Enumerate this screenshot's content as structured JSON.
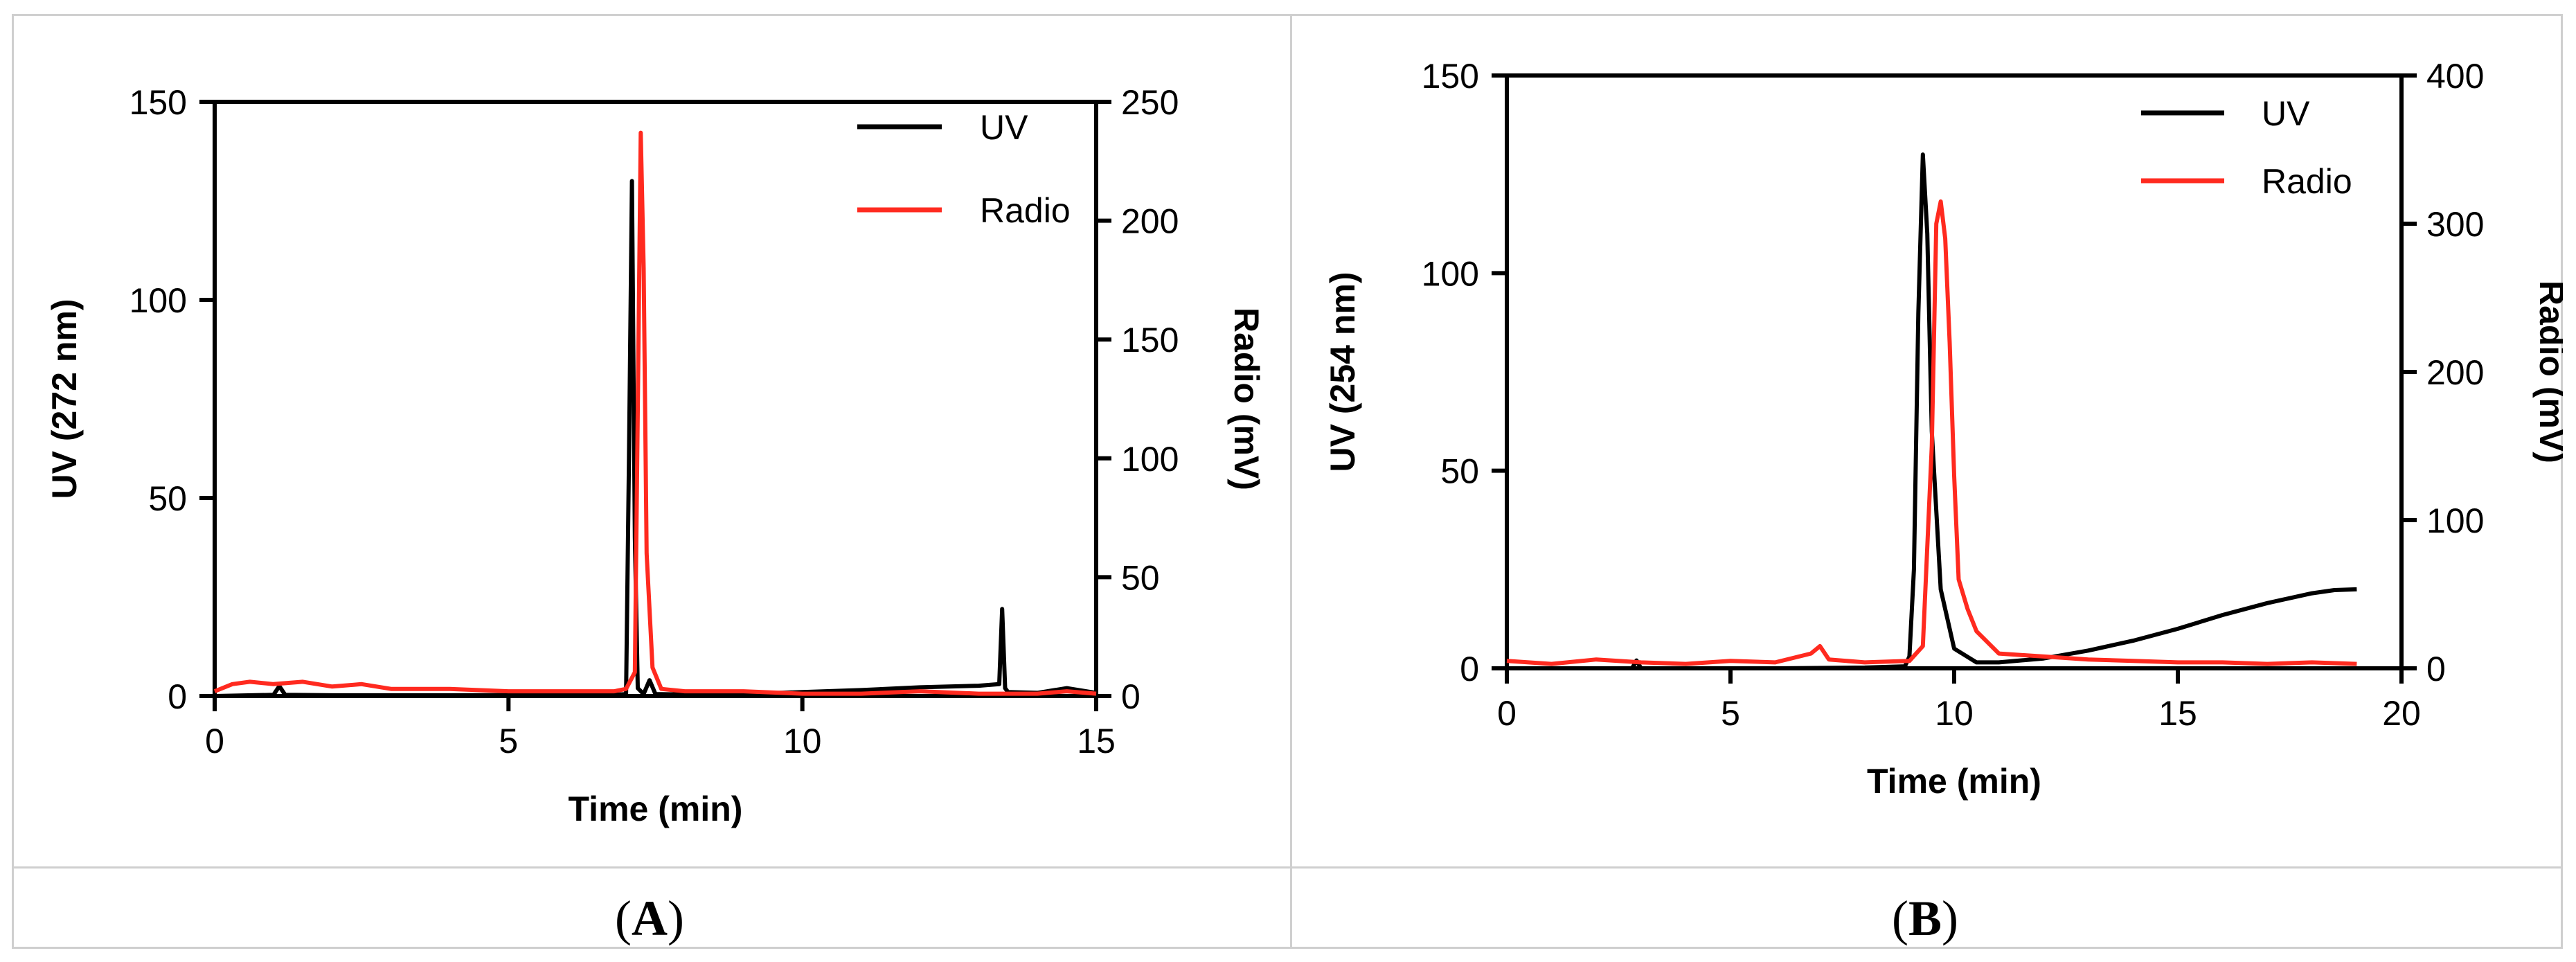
{
  "panels": [
    {
      "caption_open": "(",
      "caption_letter": "A",
      "caption_close": ")"
    },
    {
      "caption_open": "(",
      "caption_letter": "B",
      "caption_close": ")"
    }
  ],
  "chart_data": [
    {
      "type": "line",
      "xlabel": "Time (min)",
      "ylabel_left": "UV (272 nm)",
      "ylabel_right": "Radio (mV)",
      "xlim": [
        0,
        15
      ],
      "ylim_left": [
        0,
        150
      ],
      "ylim_right": [
        0,
        250
      ],
      "xticks": [
        0,
        5,
        10,
        15
      ],
      "yticks_left": [
        0,
        50,
        100,
        150
      ],
      "yticks_right": [
        0,
        50,
        100,
        150,
        200,
        250
      ],
      "grid": false,
      "legend_position": "top-right",
      "series": [
        {
          "name": "UV",
          "axis": "left",
          "color": "#000000",
          "x": [
            0,
            1.0,
            1.1,
            1.2,
            2.0,
            4.0,
            6.8,
            7.0,
            7.05,
            7.1,
            7.15,
            7.2,
            7.3,
            7.4,
            7.5,
            8.0,
            9.0,
            10.0,
            11.0,
            12.0,
            13.0,
            13.35,
            13.4,
            13.45,
            13.5,
            14.0,
            14.5,
            15.0
          ],
          "y": [
            0,
            0.3,
            2.5,
            0.3,
            0.2,
            0.2,
            0.3,
            0.5,
            60,
            130,
            40,
            2,
            0.5,
            4,
            0.5,
            0.4,
            0.5,
            1.0,
            1.5,
            2.2,
            2.6,
            3.0,
            22,
            2.0,
            1.0,
            0.8,
            2.0,
            0.8
          ]
        },
        {
          "name": "Radio",
          "axis": "right",
          "color": "#ff2a1f",
          "x": [
            0,
            0.3,
            0.6,
            1.0,
            1.5,
            2.0,
            2.5,
            3.0,
            4.0,
            5.0,
            6.0,
            6.8,
            7.0,
            7.15,
            7.2,
            7.25,
            7.3,
            7.35,
            7.45,
            7.6,
            8.0,
            9.0,
            10.0,
            11.0,
            12.0,
            13.0,
            14.0,
            14.5,
            15.0
          ],
          "y": [
            2,
            5,
            6,
            5,
            6,
            4,
            5,
            3,
            3,
            2,
            2,
            2,
            3,
            10,
            120,
            237,
            180,
            60,
            12,
            3,
            2,
            2,
            1,
            1,
            2,
            1,
            1,
            2,
            1
          ]
        }
      ]
    },
    {
      "type": "line",
      "xlabel": "Time (min)",
      "ylabel_left": "UV (254 nm)",
      "ylabel_right": "Radio (mV)",
      "xlim": [
        0,
        20
      ],
      "ylim_left": [
        0,
        150
      ],
      "ylim_right": [
        0,
        400
      ],
      "xticks": [
        0,
        5,
        10,
        15,
        20
      ],
      "yticks_left": [
        0,
        50,
        100,
        150
      ],
      "yticks_right": [
        0,
        100,
        200,
        300,
        400
      ],
      "grid": false,
      "legend_position": "top-right",
      "series": [
        {
          "name": "UV",
          "axis": "left",
          "color": "#000000",
          "x": [
            0,
            1.0,
            2.8,
            2.9,
            3.0,
            4.0,
            6.0,
            8.0,
            8.9,
            9.0,
            9.1,
            9.2,
            9.3,
            9.4,
            9.5,
            9.7,
            10.0,
            10.5,
            11.0,
            12.0,
            13.0,
            14.0,
            15.0,
            16.0,
            17.0,
            18.0,
            18.5,
            19.0
          ],
          "y": [
            0,
            0,
            0,
            2,
            0,
            0,
            0,
            0.2,
            0.5,
            3,
            25,
            90,
            130,
            110,
            60,
            20,
            5,
            1.5,
            1.5,
            2.5,
            4.5,
            7,
            10,
            13.5,
            16.5,
            19,
            19.8,
            20
          ]
        },
        {
          "name": "Radio",
          "axis": "right",
          "color": "#ff2a1f",
          "x": [
            0,
            1.0,
            2.0,
            3.0,
            4.0,
            5.0,
            6.0,
            6.8,
            7.0,
            7.2,
            8.0,
            9.0,
            9.3,
            9.5,
            9.6,
            9.7,
            9.8,
            9.9,
            10.0,
            10.1,
            10.3,
            10.5,
            11.0,
            12.0,
            13.0,
            14.0,
            15.0,
            16.0,
            17.0,
            18.0,
            19.0
          ],
          "y": [
            5,
            3,
            6,
            4,
            3,
            5,
            4,
            10,
            15,
            6,
            4,
            5,
            15,
            150,
            300,
            315,
            290,
            220,
            130,
            60,
            40,
            25,
            10,
            8,
            6,
            5,
            4,
            4,
            3,
            4,
            3
          ]
        }
      ]
    }
  ]
}
